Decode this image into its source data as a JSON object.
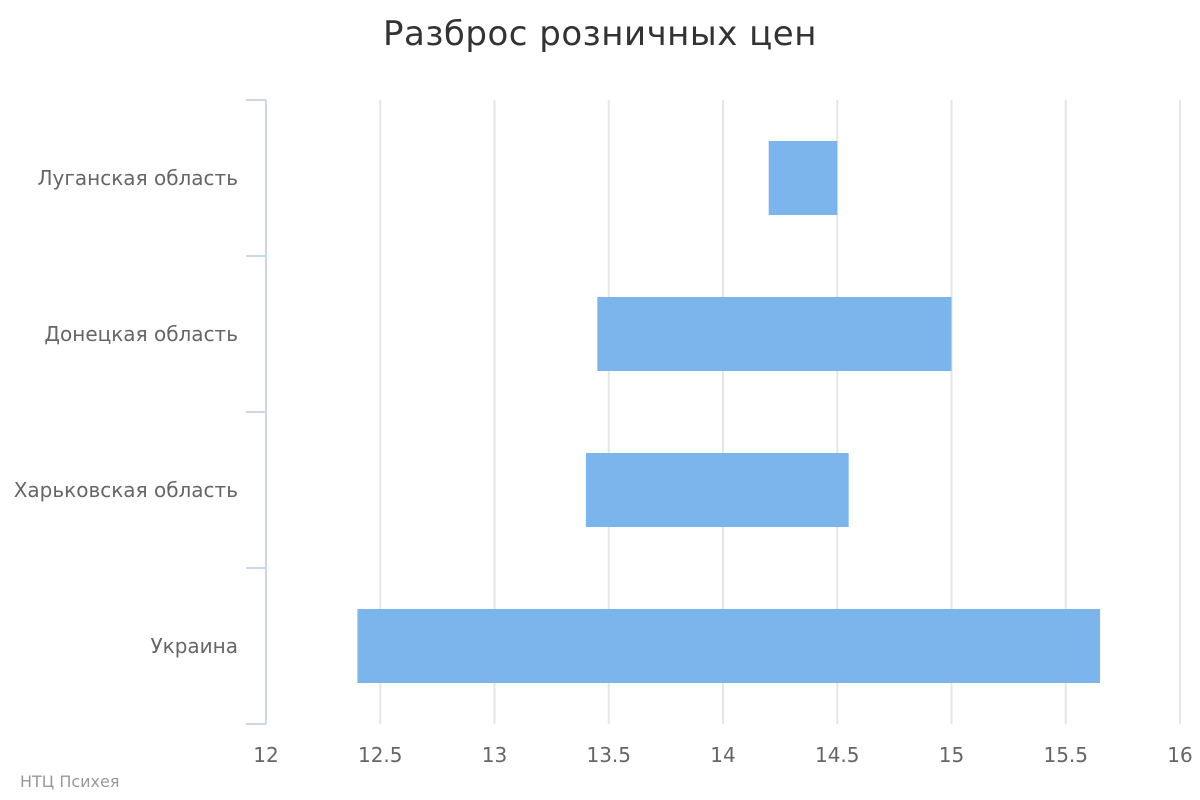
{
  "chart_data": {
    "type": "bar",
    "orientation": "horizontal",
    "variant": "columnrange",
    "title": "Разброс розничных цен",
    "categories": [
      "Луганская область",
      "Донецкая область",
      "Харьковская область",
      "Украина"
    ],
    "series": [
      {
        "color": "#7cb5ec",
        "ranges": [
          [
            14.2,
            14.5
          ],
          [
            13.45,
            15.0
          ],
          [
            13.4,
            14.55
          ],
          [
            12.4,
            15.65
          ]
        ]
      }
    ],
    "xlim": [
      12,
      16
    ],
    "x_ticks": [
      12,
      12.5,
      13,
      13.5,
      14,
      14.5,
      15,
      15.5,
      16
    ],
    "x_tick_labels": [
      "12",
      "12.5",
      "13",
      "13.5",
      "14",
      "14.5",
      "15",
      "15.5",
      "16"
    ],
    "grid": true,
    "legend": false,
    "credits": "НТЦ Психея"
  }
}
